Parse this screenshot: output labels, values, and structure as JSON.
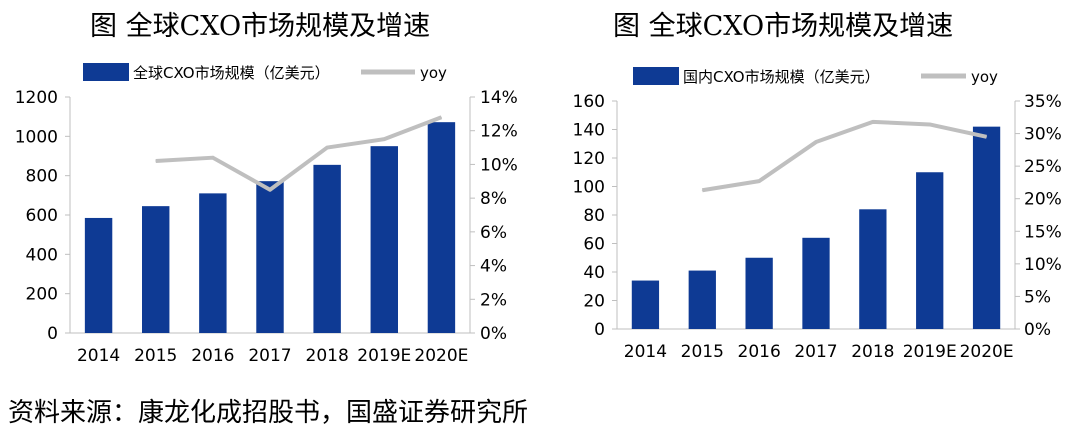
{
  "charts": [
    {
      "title": "图  全球CXO市场规模及增速",
      "chart_data": {
        "type": "bar",
        "categories": [
          "2014",
          "2015",
          "2016",
          "2017",
          "2018",
          "2019E",
          "2020E"
        ],
        "series": [
          {
            "name": "全球CXO市场规模（亿美元）",
            "type": "bar",
            "axis": "left",
            "values": [
              585,
              645,
              710,
              772,
              855,
              950,
              1072
            ]
          },
          {
            "name": "yoy",
            "type": "line",
            "axis": "right",
            "values": [
              null,
              10.2,
              10.4,
              8.5,
              11.0,
              11.5,
              12.8
            ]
          }
        ],
        "ylim": [
          0,
          1200
        ],
        "yticks": [
          0,
          200,
          400,
          600,
          800,
          1000,
          1200
        ],
        "y2lim": [
          0,
          14
        ],
        "y2ticks": [
          "0%",
          "2%",
          "4%",
          "6%",
          "8%",
          "10%",
          "12%",
          "14%"
        ],
        "legend": "top"
      }
    },
    {
      "title": "图  全球CXO市场规模及增速",
      "chart_data": {
        "type": "bar",
        "categories": [
          "2014",
          "2015",
          "2016",
          "2017",
          "2018",
          "2019E",
          "2020E"
        ],
        "series": [
          {
            "name": "国内CXO市场规模（亿美元）",
            "type": "bar",
            "axis": "left",
            "values": [
              34,
              41,
              50,
              64,
              84,
              110,
              142
            ]
          },
          {
            "name": "yoy",
            "type": "line",
            "axis": "right",
            "values": [
              null,
              21.3,
              22.7,
              28.7,
              31.8,
              31.4,
              29.5
            ]
          }
        ],
        "ylim": [
          0,
          160
        ],
        "yticks": [
          0,
          20,
          40,
          60,
          80,
          100,
          120,
          140,
          160
        ],
        "y2lim": [
          0,
          35
        ],
        "y2ticks": [
          "0%",
          "5%",
          "10%",
          "15%",
          "20%",
          "25%",
          "30%",
          "35%"
        ],
        "legend": "top"
      }
    }
  ],
  "colors": {
    "bar": "#0E3A94",
    "line": "#BFBFBF",
    "axis": "#BFBFBF",
    "text": "#000000"
  },
  "source": "资料来源：康龙化成招股书，国盛证券研究所"
}
